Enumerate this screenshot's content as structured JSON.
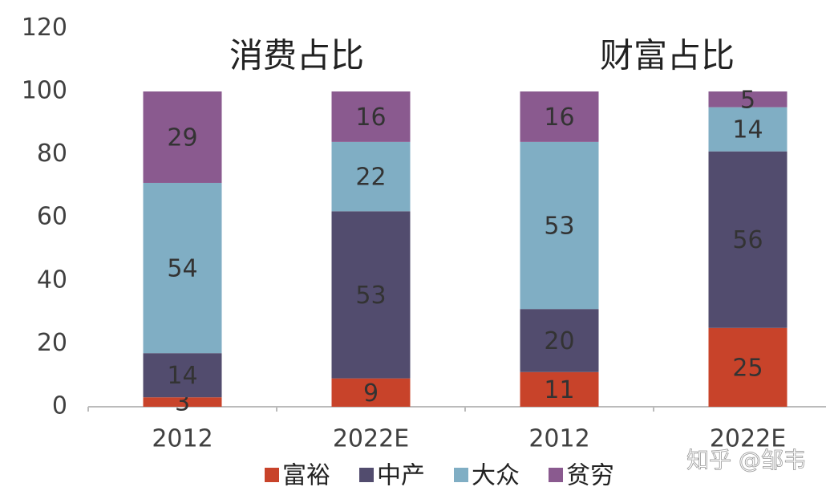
{
  "chart_data": {
    "type": "stacked_bar",
    "annotations": [
      "消费占比",
      "财富占比"
    ],
    "categories": [
      "2012",
      "2022E",
      "2012",
      "2022E"
    ],
    "series": [
      {
        "name": "富裕",
        "color": "#c8432a",
        "values": [
          3,
          9,
          11,
          25
        ]
      },
      {
        "name": "中产",
        "color": "#524c6e",
        "values": [
          14,
          53,
          20,
          56
        ]
      },
      {
        "name": "大众",
        "color": "#80aec4",
        "values": [
          54,
          22,
          53,
          14
        ]
      },
      {
        "name": "贫穷",
        "color": "#8a5a8f",
        "values": [
          29,
          16,
          16,
          5
        ]
      }
    ],
    "ylim": [
      0,
      120
    ],
    "yticks": [
      0,
      20,
      40,
      60,
      80,
      100,
      120
    ],
    "grid": false,
    "legend": "bottom",
    "watermark": "知乎 @邹韦"
  }
}
